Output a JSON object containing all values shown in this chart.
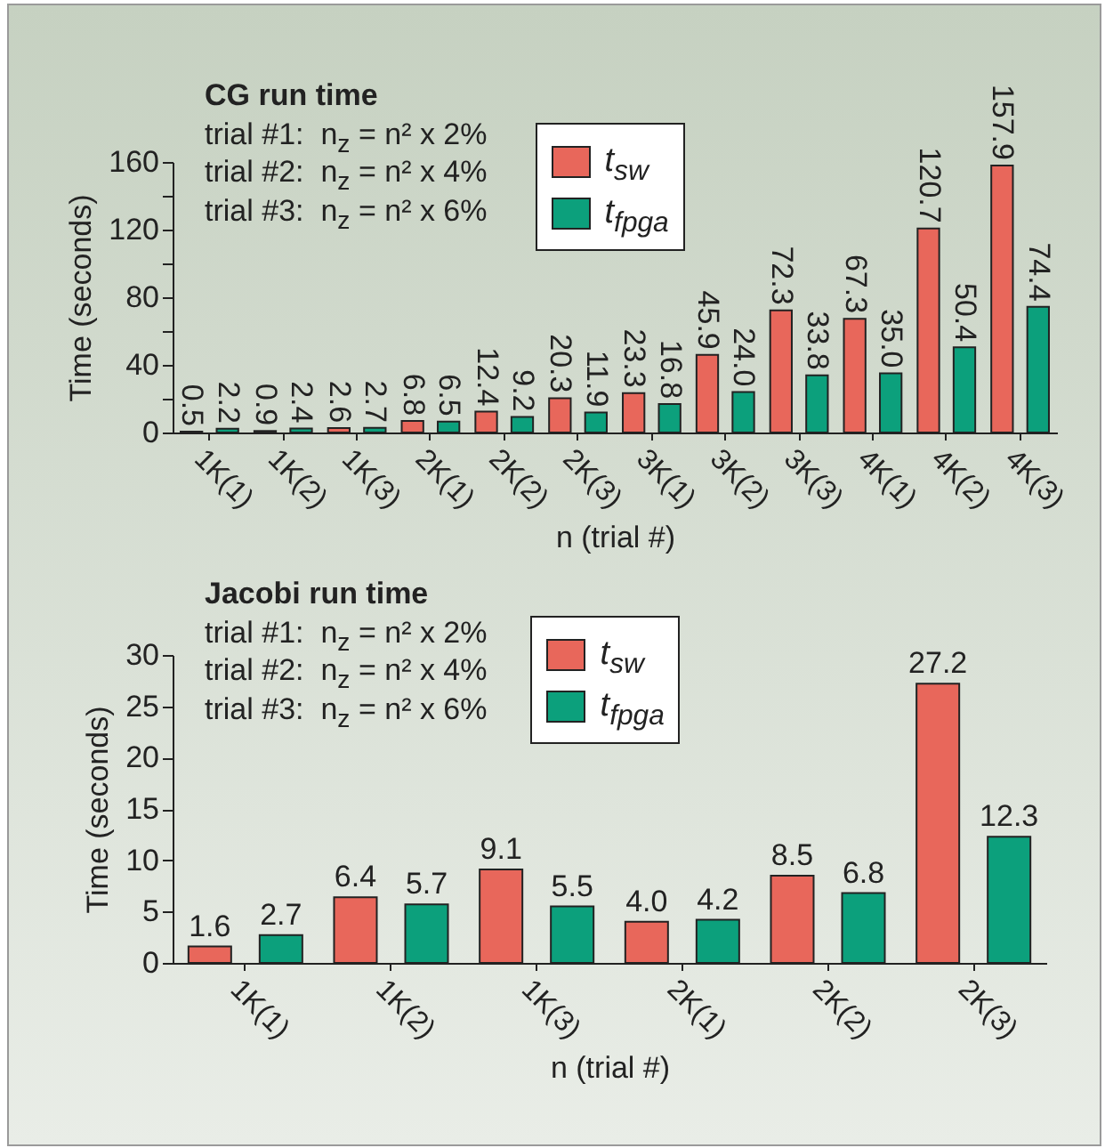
{
  "chart_data": [
    {
      "type": "bar",
      "title": "CG run time",
      "xlabel": "n (trial #)",
      "ylabel": "Time (seconds)",
      "annotations": [
        "trial #1:  n$_{z}$ = n² x 2%",
        "trial #2:  n$_{z}$ = n² x 4%",
        "trial #3:  n$_{z}$ = n² x 6%"
      ],
      "categories": [
        "1K(1)",
        "1K(2)",
        "1K(3)",
        "2K(1)",
        "2K(2)",
        "2K(3)",
        "3K(1)",
        "3K(2)",
        "3K(3)",
        "4K(1)",
        "4K(2)",
        "4K(3)"
      ],
      "series": [
        {
          "name": "t$_{sw}$",
          "color": "#e8675b",
          "values": [
            0.5,
            0.9,
            2.6,
            6.8,
            12.4,
            20.3,
            23.3,
            45.9,
            72.3,
            67.3,
            120.7,
            157.9
          ],
          "value_labels": [
            "0.5",
            "0.9",
            "2.6",
            "6.8",
            "12.4",
            "20.3",
            "23.3",
            "45.9",
            "72.3",
            "67.3",
            "120.7",
            "157.9"
          ]
        },
        {
          "name": "t$_{fpga}$",
          "color": "#0ca07c",
          "values": [
            2.2,
            2.4,
            2.7,
            6.5,
            9.2,
            11.9,
            16.8,
            24.0,
            33.8,
            35.0,
            50.4,
            74.4
          ],
          "value_labels": [
            "2.2",
            "2.4",
            "2.7",
            "6.5",
            "9.2",
            "11.9",
            "16.8",
            "24.0",
            "33.8",
            "35.0",
            "50.4",
            "74.4"
          ]
        }
      ],
      "ylim": [
        0,
        160
      ],
      "yticks": [
        0,
        {
          "value": 20,
          "label": null
        },
        40,
        {
          "value": 60,
          "label": null
        },
        80,
        {
          "value": 100,
          "label": null
        },
        120,
        {
          "value": 140,
          "label": null
        },
        160
      ],
      "legend": "top"
    },
    {
      "type": "bar",
      "title": "Jacobi run time",
      "xlabel": "n (trial #)",
      "ylabel": "Time (seconds)",
      "annotations": [
        "trial #1:  n$_{z}$ = n² x 2%",
        "trial #2:  n$_{z}$ = n² x 4%",
        "trial #3:  n$_{z}$ = n² x 6%"
      ],
      "categories": [
        "1K(1)",
        "1K(2)",
        "1K(3)",
        "2K(1)",
        "2K(2)",
        "2K(3)"
      ],
      "series": [
        {
          "name": "t$_{sw}$",
          "color": "#e8675b",
          "values": [
            1.6,
            6.4,
            9.1,
            4.0,
            8.5,
            27.2
          ],
          "value_labels": [
            "1.6",
            "6.4",
            "9.1",
            "4.0",
            "8.5",
            "27.2"
          ]
        },
        {
          "name": "t$_{fpga}$",
          "color": "#0ca07c",
          "values": [
            2.7,
            5.7,
            5.5,
            4.2,
            6.8,
            12.3
          ],
          "value_labels": [
            "2.7",
            "5.7",
            "5.5",
            "4.2",
            "6.8",
            "12.3"
          ]
        }
      ],
      "ylim": [
        0,
        30
      ],
      "yticks": [
        0,
        5,
        10,
        15,
        20,
        25,
        30
      ],
      "legend": "top"
    }
  ]
}
